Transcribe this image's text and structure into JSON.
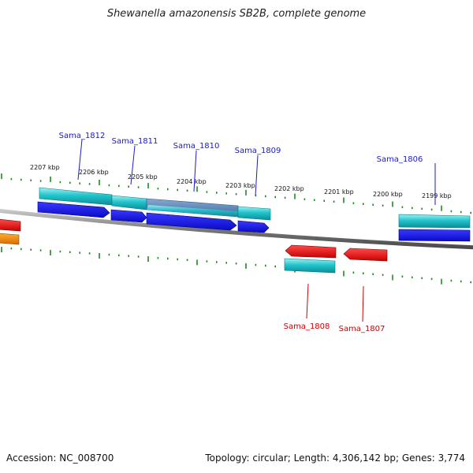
{
  "title": "Shewanella amazonensis SB2B, complete genome",
  "footer": {
    "accession": "Accession: NC_008700",
    "summary": "Topology: circular; Length: 4,306,142 bp; Genes: 3,774"
  },
  "scale_labels": [
    "2207 kbp",
    "2206 kbp",
    "2205 kbp",
    "2204 kbp",
    "2203 kbp",
    "2202 kbp",
    "2201 kbp",
    "2200 kbp",
    "2199 kbp"
  ],
  "gene_labels": [
    {
      "text": "Sama_1812",
      "strand": "plus"
    },
    {
      "text": "Sama_1811",
      "strand": "plus"
    },
    {
      "text": "Sama_1810",
      "strand": "plus"
    },
    {
      "text": "Sama_1809",
      "strand": "plus"
    },
    {
      "text": "Sama_1806",
      "strand": "plus"
    },
    {
      "text": "Sama_1808",
      "strand": "minus"
    },
    {
      "text": "Sama_1807",
      "strand": "minus"
    }
  ],
  "colors": {
    "plus_label": "#1a1ac8",
    "minus_label": "#cc0000",
    "cds_forward": "#1414e6",
    "cds_reverse": "#ee1111",
    "feature_teal": "#22c4cc",
    "feature_orange": "#ee8800",
    "backbone": "#8a8a8a",
    "ticks": "#1e8a1e"
  }
}
